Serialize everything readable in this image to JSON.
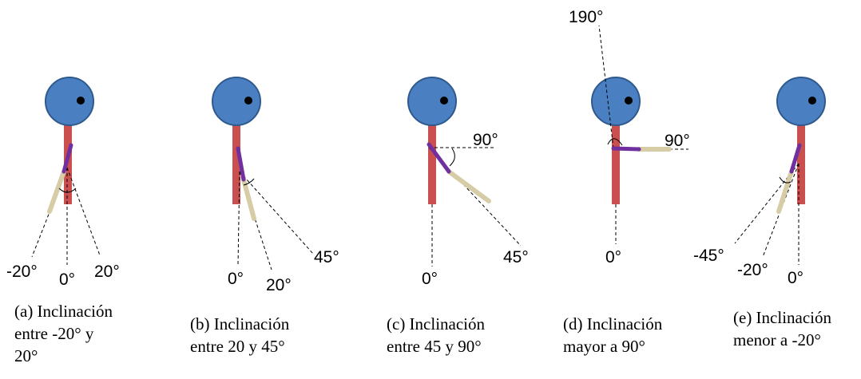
{
  "panels": [
    {
      "labels": [
        "-20°",
        "0°",
        "20°"
      ],
      "caption": [
        "(a) Inclinación",
        "entre -20° y",
        "20°"
      ]
    },
    {
      "labels": [
        "0°",
        "20°",
        "45°"
      ],
      "caption": [
        "(b) Inclinación",
        "entre 20 y 45°"
      ]
    },
    {
      "labels": [
        "90°",
        "45°",
        "0°"
      ],
      "caption": [
        "(c) Inclinación",
        "entre 45 y 90°"
      ]
    },
    {
      "labels": [
        "190°",
        "90°",
        "0°"
      ],
      "caption": [
        "(d) Inclinación",
        "mayor a 90°"
      ]
    },
    {
      "labels": [
        "-45°",
        "-20°",
        "0°"
      ],
      "caption": [
        "(e) Inclinación",
        "menor a -20°"
      ]
    }
  ]
}
